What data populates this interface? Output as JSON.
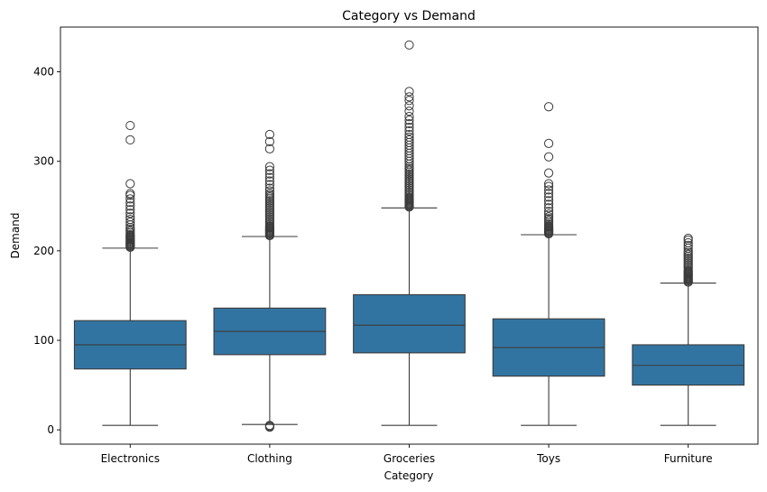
{
  "chart_data": {
    "type": "box",
    "title": "Category vs Demand",
    "xlabel": "Category",
    "ylabel": "Demand",
    "ylim": [
      -16,
      450
    ],
    "yticks": [
      0,
      100,
      200,
      300,
      400
    ],
    "grid": false,
    "legend": "none",
    "box_color": "#3274a1",
    "line_color": "#3b3b3b",
    "categories": [
      "Electronics",
      "Clothing",
      "Groceries",
      "Toys",
      "Furniture"
    ],
    "boxes": [
      {
        "category": "Electronics",
        "whisker_low": 5,
        "q1": 68,
        "median": 95,
        "q3": 122,
        "whisker_high": 203,
        "outliers": [
          204,
          205,
          206,
          207,
          208,
          209,
          210,
          211,
          212,
          213,
          214,
          215,
          216,
          217,
          218,
          220,
          222,
          224,
          226,
          229,
          232,
          235,
          238,
          242,
          246,
          250,
          254,
          258,
          262,
          264,
          275,
          324,
          340
        ]
      },
      {
        "category": "Clothing",
        "whisker_low": 6,
        "q1": 84,
        "median": 110,
        "q3": 136,
        "whisker_high": 216,
        "outliers": [
          3,
          4,
          5,
          217,
          218,
          219,
          220,
          221,
          222,
          223,
          224,
          225,
          226,
          227,
          228,
          230,
          232,
          234,
          236,
          238,
          240,
          242,
          244,
          246,
          248,
          250,
          252,
          254,
          256,
          258,
          260,
          262,
          264,
          267,
          270,
          274,
          278,
          282,
          286,
          290,
          294,
          314,
          322,
          330
        ]
      },
      {
        "category": "Groceries",
        "whisker_low": 5,
        "q1": 86,
        "median": 117,
        "q3": 151,
        "whisker_high": 248,
        "outliers": [
          249,
          250,
          251,
          252,
          253,
          254,
          255,
          256,
          257,
          258,
          259,
          260,
          262,
          264,
          266,
          268,
          270,
          272,
          274,
          276,
          278,
          280,
          282,
          284,
          286,
          288,
          290,
          292,
          294,
          297,
          300,
          303,
          306,
          309,
          312,
          315,
          318,
          321,
          324,
          327,
          330,
          334,
          338,
          342,
          346,
          350,
          356,
          362,
          368,
          372,
          378,
          430
        ]
      },
      {
        "category": "Toys",
        "whisker_low": 5,
        "q1": 60,
        "median": 92,
        "q3": 124,
        "whisker_high": 218,
        "outliers": [
          219,
          220,
          221,
          222,
          223,
          224,
          225,
          226,
          227,
          228,
          230,
          232,
          234,
          236,
          238,
          241,
          244,
          248,
          252,
          256,
          260,
          264,
          268,
          272,
          275,
          287,
          305,
          320,
          361
        ]
      },
      {
        "category": "Furniture",
        "whisker_low": 5,
        "q1": 50,
        "median": 72,
        "q3": 95,
        "whisker_high": 164,
        "outliers": [
          165,
          166,
          167,
          168,
          169,
          170,
          171,
          172,
          173,
          174,
          175,
          176,
          177,
          178,
          180,
          182,
          184,
          186,
          188,
          190,
          192,
          194,
          196,
          198,
          200,
          203,
          206,
          209,
          212,
          214
        ]
      }
    ]
  }
}
